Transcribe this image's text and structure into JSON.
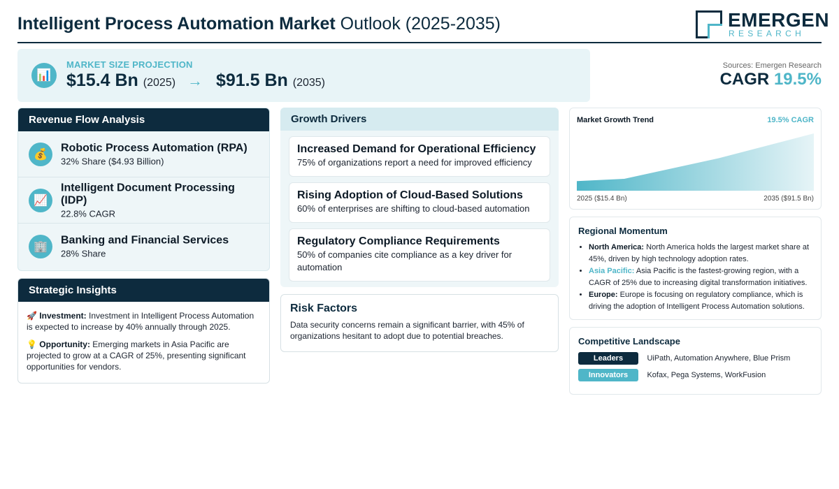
{
  "header": {
    "title_bold": "Intelligent Process Automation Market",
    "title_rest": "Outlook (2025-2035)",
    "logo_main": "EMERGEN",
    "logo_sub": "RESEARCH"
  },
  "market_size": {
    "label": "MARKET SIZE PROJECTION",
    "value_start": "$15.4 Bn",
    "year_start": "(2025)",
    "arrow": "→",
    "value_end": "$91.5 Bn",
    "year_end": "(2035)",
    "icon": "bar-chart-icon"
  },
  "sources": "Sources: Emergen Research",
  "cagr": {
    "label": "CAGR",
    "value": "19.5%"
  },
  "revenue_flow": {
    "title": "Revenue Flow Analysis",
    "items": [
      {
        "title": "Robotic Process Automation (RPA)",
        "sub": "32% Share ($4.93 Billion)",
        "icon": "money-bag-icon"
      },
      {
        "title": "Intelligent Document Processing (IDP)",
        "sub": "22.8% CAGR",
        "icon": "trend-chart-icon"
      },
      {
        "title": "Banking and Financial Services",
        "sub": "28% Share",
        "icon": "building-icon"
      }
    ]
  },
  "strategic_insights": {
    "title": "Strategic Insights",
    "items": [
      {
        "label": "Investment:",
        "text": "Investment in Intelligent Process Automation is expected to increase by 40% annually through 2025.",
        "icon": "rocket-icon"
      },
      {
        "label": "Opportunity:",
        "text": "Emerging markets in Asia Pacific are projected to grow at a CAGR of 25%, presenting significant opportunities for vendors.",
        "icon": "lightbulb-icon"
      }
    ]
  },
  "growth_drivers": {
    "title": "Growth Drivers",
    "items": [
      {
        "title": "Increased Demand for Operational Efficiency",
        "sub": "75% of organizations report a need for improved efficiency"
      },
      {
        "title": "Rising Adoption of Cloud-Based Solutions",
        "sub": "60% of enterprises are shifting to cloud-based automation"
      },
      {
        "title": "Regulatory Compliance Requirements",
        "sub": "50% of companies cite compliance as a key driver for automation"
      }
    ]
  },
  "risk_factors": {
    "title": "Risk Factors",
    "text": "Data security concerns remain a significant barrier, with 45% of organizations hesitant to adopt due to potential breaches."
  },
  "trend": {
    "title": "Market Growth Trend",
    "cagr_label": "19.5% CAGR",
    "x_start_label": "2025 ($15.4 Bn)",
    "x_end_label": "2035 ($91.5 Bn)",
    "colors": {
      "fill_start": "#4fb6c8",
      "fill_end": "#e6f4f7"
    }
  },
  "chart_data": {
    "type": "area",
    "title": "Market Growth Trend",
    "x": [
      "2025",
      "2035"
    ],
    "series": [
      {
        "values": [
          15.4,
          91.5
        ]
      }
    ],
    "shape_points": [
      [
        0,
        15.4
      ],
      [
        0.2,
        19.0
      ],
      [
        0.6,
        52.0
      ],
      [
        1.0,
        91.5
      ]
    ],
    "ylim": [
      0,
      91.5
    ],
    "grid": false
  },
  "regional": {
    "title": "Regional Momentum",
    "items": [
      {
        "label": "North America:",
        "text": "North America holds the largest market share at 45%, driven by high technology adoption rates.",
        "style": "dark"
      },
      {
        "label": "Asia Pacific:",
        "text": "Asia Pacific is the fastest-growing region, with a CAGR of 25% due to increasing digital transformation initiatives.",
        "style": "accent"
      },
      {
        "label": "Europe:",
        "text": "Europe is focusing on regulatory compliance, which is driving the adoption of Intelligent Process Automation solutions.",
        "style": "dark"
      }
    ]
  },
  "competitive": {
    "title": "Competitive Landscape",
    "rows": [
      {
        "badge": "Leaders",
        "names": "UiPath, Automation Anywhere, Blue Prism"
      },
      {
        "badge": "Innovators",
        "names": "Kofax, Pega Systems, WorkFusion"
      }
    ]
  },
  "colors": {
    "navy": "#0d2b3e",
    "accent": "#4fb6c8",
    "panel": "#eef6f8"
  }
}
